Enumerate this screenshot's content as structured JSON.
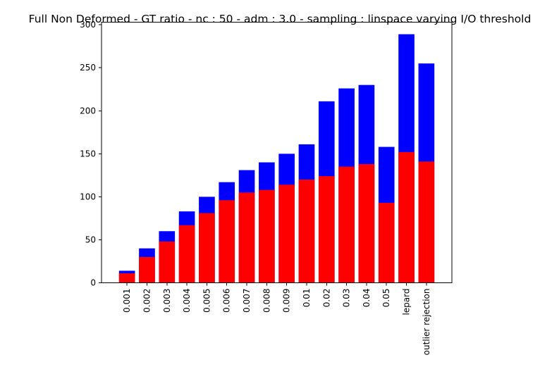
{
  "chart_data": {
    "type": "bar",
    "title": "Full Non Deformed - GT ratio - nc : 50 - adm : 3.0 - sampling : linspace varying I/O threshold",
    "xlabel": "",
    "ylabel": "",
    "ylim": [
      0,
      303
    ],
    "yticks": [
      0,
      50,
      100,
      150,
      200,
      250,
      300
    ],
    "grid": false,
    "stacked": "overlay",
    "categories": [
      "0.001",
      "0.002",
      "0.003",
      "0.004",
      "0.005",
      "0.006",
      "0.007",
      "0.008",
      "0.009",
      "0.01",
      "0.02",
      "0.03",
      "0.04",
      "0.05",
      "lepard",
      "outlier rejection"
    ],
    "series": [
      {
        "color": "#0000ff",
        "values": [
          14,
          40,
          60,
          83,
          100,
          117,
          131,
          140,
          150,
          161,
          211,
          226,
          230,
          158,
          289,
          255
        ]
      },
      {
        "color": "#ff0000",
        "values": [
          11,
          30,
          48,
          67,
          81,
          96,
          105,
          108,
          114,
          120,
          124,
          135,
          138,
          93,
          152,
          141
        ]
      }
    ]
  }
}
